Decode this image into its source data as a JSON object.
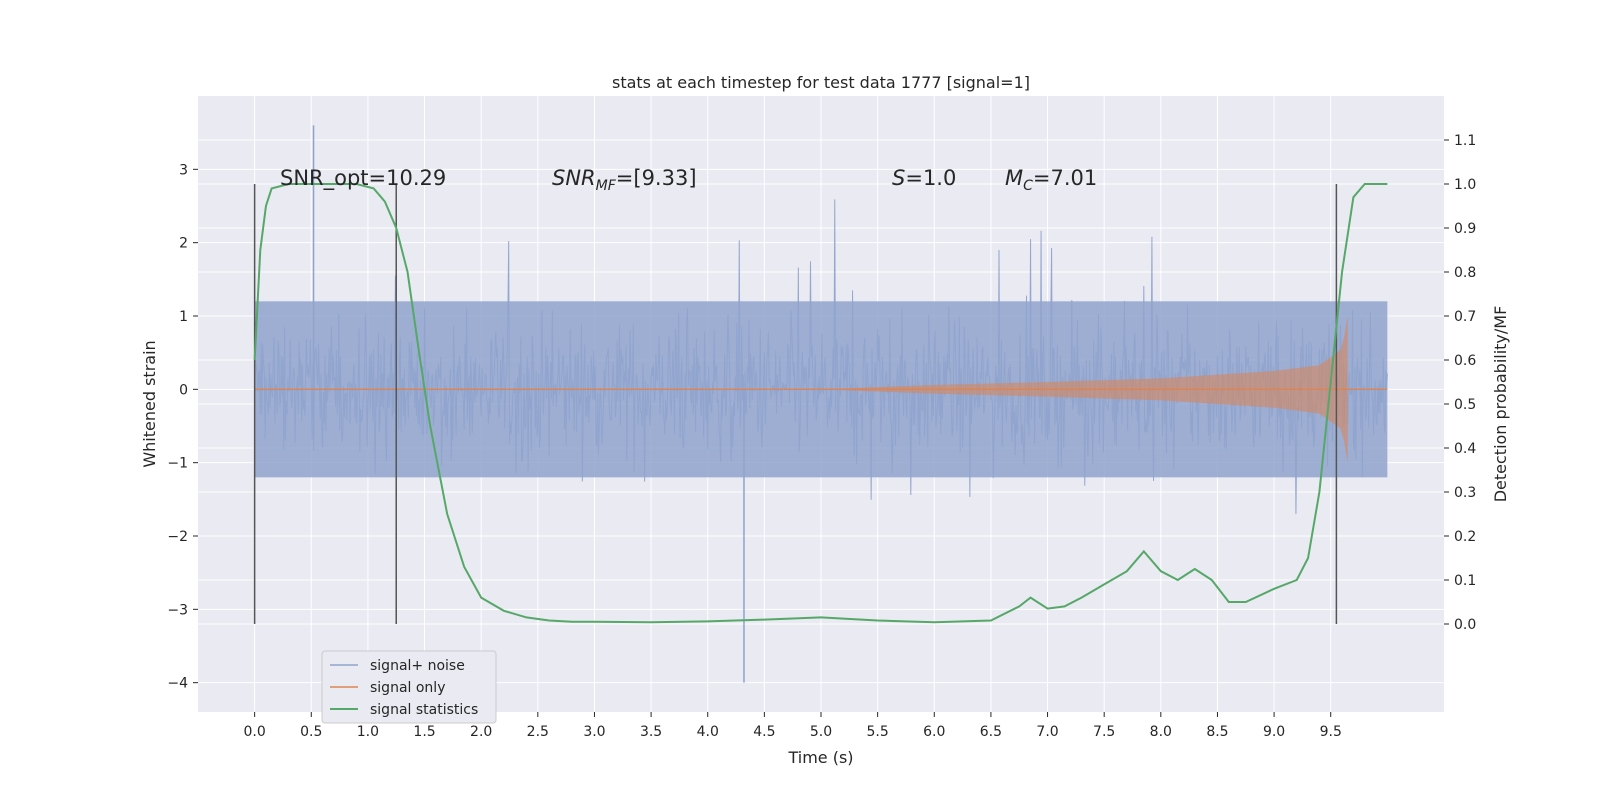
{
  "chart_data": {
    "type": "line",
    "title": "stats at each timestep for test data 1777 [signal=1]",
    "xlabel": "Time (s)",
    "ylabel": "Whitened strain",
    "ylabel_right": "Detection probability/MF",
    "xlim": [
      -0.5,
      10.5
    ],
    "ylim": [
      -4.4,
      4.0
    ],
    "ylim_right": [
      -0.2,
      1.2
    ],
    "x_ticks": [
      "0.0",
      "0.5",
      "1.0",
      "1.5",
      "2.0",
      "2.5",
      "3.0",
      "3.5",
      "4.0",
      "4.5",
      "5.0",
      "5.5",
      "6.0",
      "6.5",
      "7.0",
      "7.5",
      "8.0",
      "8.5",
      "9.0",
      "9.5"
    ],
    "x_tick_values": [
      0.0,
      0.5,
      1.0,
      1.5,
      2.0,
      2.5,
      3.0,
      3.5,
      4.0,
      4.5,
      5.0,
      5.5,
      6.0,
      6.5,
      7.0,
      7.5,
      8.0,
      8.5,
      9.0,
      9.5
    ],
    "y_ticks": [
      "3",
      "2",
      "1",
      "0",
      "−1",
      "−2",
      "−3",
      "−4"
    ],
    "y_tick_values": [
      3,
      2,
      1,
      0,
      -1,
      -2,
      -3,
      -4
    ],
    "y_right_ticks": [
      "1.1",
      "1.0",
      "0.9",
      "0.8",
      "0.7",
      "0.6",
      "0.5",
      "0.4",
      "0.3",
      "0.2",
      "0.1",
      "0.0"
    ],
    "y_right_tick_values": [
      1.1,
      1.0,
      0.9,
      0.8,
      0.7,
      0.6,
      0.5,
      0.4,
      0.3,
      0.2,
      0.1,
      0.0
    ],
    "grid": true,
    "legend_placement": "lower-left",
    "series": [
      {
        "name": "signal+ noise",
        "color": "#8fa3cc",
        "axis": "left",
        "x_range": [
          0.0,
          10.0
        ],
        "amplitude_core": [
          -1.2,
          1.2
        ],
        "extremes_approx": {
          "max": 3.6,
          "min": -4.0
        }
      },
      {
        "name": "signal only",
        "color": "#dd8452",
        "axis": "left",
        "x_range": [
          0.0,
          9.65
        ],
        "envelope": {
          "x": [
            0.0,
            5.0,
            6.0,
            7.0,
            8.0,
            9.0,
            9.4,
            9.6,
            9.65
          ],
          "amplitude": [
            0.0,
            0.0,
            0.06,
            0.1,
            0.15,
            0.25,
            0.33,
            0.55,
            1.0
          ]
        }
      },
      {
        "name": "signal statistics",
        "color": "#55a868",
        "axis": "right",
        "x": [
          0.0,
          0.05,
          0.1,
          0.15,
          0.3,
          0.6,
          0.9,
          1.05,
          1.15,
          1.25,
          1.35,
          1.45,
          1.55,
          1.7,
          1.85,
          2.0,
          2.2,
          2.4,
          2.6,
          2.8,
          3.0,
          3.5,
          4.0,
          4.5,
          5.0,
          5.5,
          6.0,
          6.5,
          6.75,
          6.85,
          7.0,
          7.15,
          7.3,
          7.5,
          7.7,
          7.85,
          8.0,
          8.15,
          8.3,
          8.45,
          8.6,
          8.75,
          9.0,
          9.2,
          9.3,
          9.4,
          9.5,
          9.6,
          9.7,
          9.8,
          10.0
        ],
        "y": [
          0.6,
          0.85,
          0.95,
          0.99,
          1.0,
          1.0,
          1.0,
          0.99,
          0.96,
          0.9,
          0.8,
          0.62,
          0.45,
          0.25,
          0.13,
          0.06,
          0.03,
          0.015,
          0.008,
          0.005,
          0.005,
          0.004,
          0.006,
          0.01,
          0.015,
          0.008,
          0.004,
          0.008,
          0.04,
          0.06,
          0.035,
          0.04,
          0.06,
          0.09,
          0.12,
          0.165,
          0.12,
          0.1,
          0.125,
          0.1,
          0.05,
          0.05,
          0.08,
          0.1,
          0.15,
          0.3,
          0.55,
          0.8,
          0.97,
          1.0,
          1.0
        ]
      }
    ],
    "vlines": {
      "x": [
        0.0,
        1.25,
        9.55
      ],
      "y_range": [
        -3.2,
        2.8
      ],
      "color": "#555555"
    },
    "annotations": {
      "snr_opt": "SNR_opt=10.29",
      "snr_mf_main": "SNR",
      "snr_mf_sub": "MF",
      "snr_mf_value": "=[9.33]",
      "s_main": "S",
      "s_value": "=1.0",
      "mc_main": "M",
      "mc_sub": "C",
      "mc_value": "=7.01"
    }
  }
}
